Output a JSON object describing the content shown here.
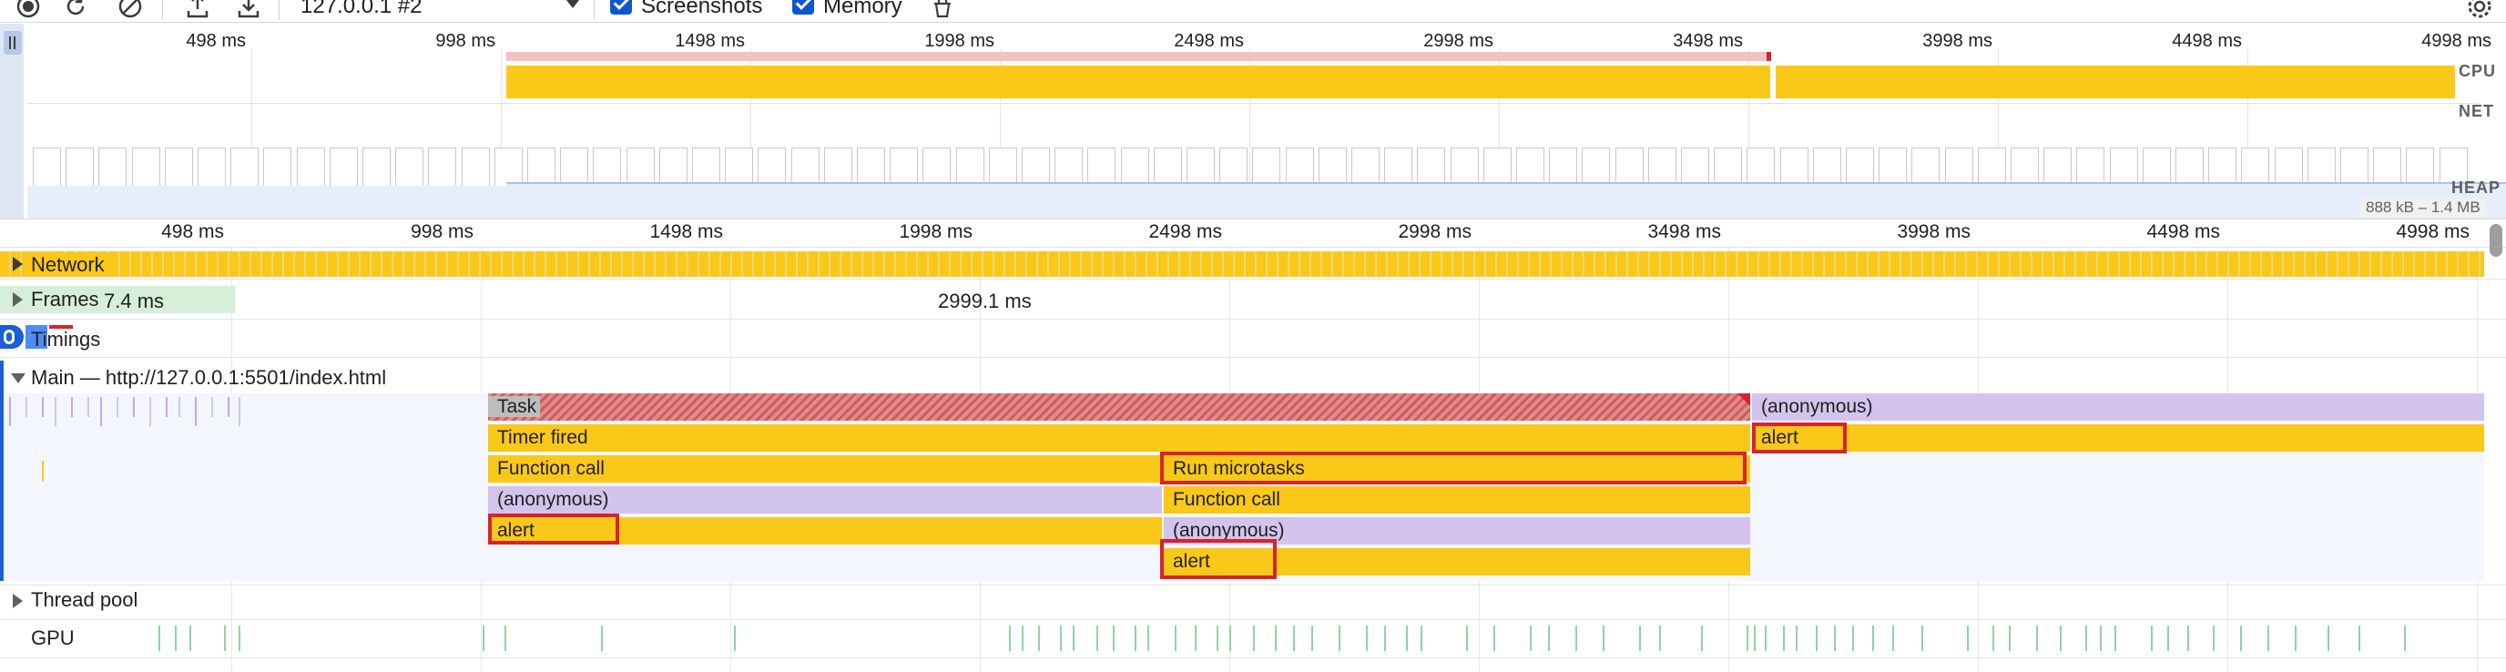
{
  "toolbar": {
    "target_select": "127.0.0.1 #2",
    "screenshots_label": "Screenshots",
    "memory_label": "Memory",
    "icons": [
      "record-icon",
      "reload-icon",
      "clear-icon",
      "upload-icon",
      "download-icon",
      "garbage-collect-icon",
      "settings-icon"
    ]
  },
  "overview": {
    "ticks": [
      "498 ms",
      "998 ms",
      "1498 ms",
      "1998 ms",
      "2498 ms",
      "2998 ms",
      "3498 ms",
      "3998 ms",
      "4498 ms",
      "4998 ms"
    ],
    "cpu_label": "CPU",
    "net_label": "NET",
    "heap_label": "HEAP",
    "heap_range": "888 kB – 1.4 MB"
  },
  "ruler": {
    "ticks": [
      "498 ms",
      "998 ms",
      "1498 ms",
      "1998 ms",
      "2498 ms",
      "2998 ms",
      "3498 ms",
      "3998 ms",
      "4498 ms",
      "4998 ms"
    ]
  },
  "tracks": {
    "network": "Network",
    "frames": "Frames",
    "frames_value_a": "7.4 ms",
    "frames_value_b": "2999.1 ms",
    "timings": "Timings",
    "main": "Main — http://127.0.0.1:5501/index.html",
    "thread_pool": "Thread pool",
    "gpu": "GPU"
  },
  "flame": {
    "task": "Task",
    "timer_fired": "Timer fired",
    "function_call_1": "Function call",
    "anonymous_1": "(anonymous)",
    "alert_1": "alert",
    "run_microtasks": "Run microtasks",
    "function_call_2": "Function call",
    "anonymous_2": "(anonymous)",
    "alert_2": "alert",
    "anonymous_3": "(anonymous)",
    "alert_3": "alert"
  },
  "colors": {
    "scripting": "#f9c819",
    "anonymous": "#d3c4ee",
    "long_task": "#d05a5a",
    "highlight": "#d8232a",
    "gpu": "#8fd3a0"
  }
}
